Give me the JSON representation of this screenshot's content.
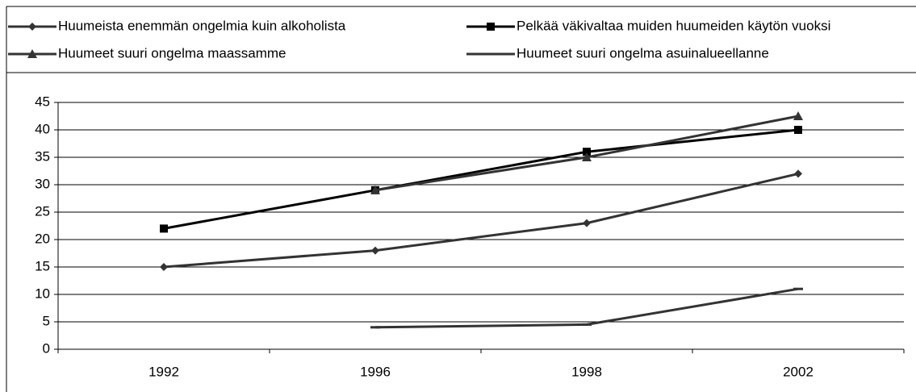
{
  "chart_data": {
    "type": "line",
    "categories": [
      "1992",
      "1996",
      "1998",
      "2002"
    ],
    "series": [
      {
        "name": "Huumeista enemmän ongelmia kuin alkoholista",
        "color": "#333333",
        "marker": "diamond",
        "values": [
          15,
          18,
          23,
          32
        ]
      },
      {
        "name": "Pelkää väkivaltaa muiden huumeiden käytön vuoksi",
        "color": "#000000",
        "marker": "square",
        "values": [
          22,
          29,
          36,
          40
        ]
      },
      {
        "name": "Huumeet suuri ongelma maassamme",
        "color": "#333333",
        "marker": "triangle",
        "values": [
          null,
          29,
          35,
          42.5
        ]
      },
      {
        "name": "Huumeet suuri ongelma asuinalueellanne",
        "color": "#333333",
        "marker": "dash",
        "values": [
          null,
          4,
          4.5,
          11
        ]
      }
    ],
    "ylim": [
      0,
      45
    ],
    "yticks": [
      0,
      5,
      10,
      15,
      20,
      25,
      30,
      35,
      40,
      45
    ],
    "grid": true
  }
}
